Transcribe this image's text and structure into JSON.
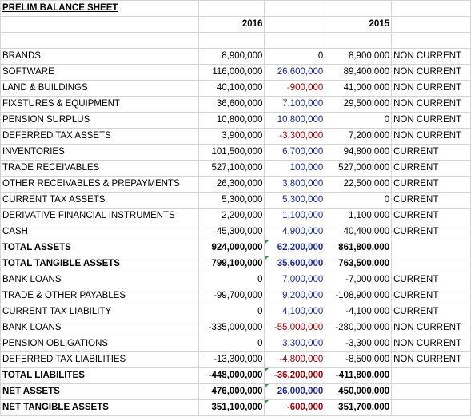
{
  "title": "PRELIM BALANCE SHEET",
  "headers": {
    "y1": "2016",
    "y2": "2015"
  },
  "colors": {
    "positive_change": "#1f2c8f",
    "negative_change": "#9c0006",
    "comment_flag": "#2e9e3a"
  },
  "rows": [
    {
      "label": "BRANDS",
      "v2016": "8,900,000",
      "change": "0",
      "change_color": "black",
      "v2015": "8,900,000",
      "class": "NON CURRENT",
      "bold": false,
      "flag": false
    },
    {
      "label": "SOFTWARE",
      "v2016": "116,000,000",
      "change": "26,600,000",
      "change_color": "blue",
      "v2015": "89,400,000",
      "class": "NON CURRENT",
      "bold": false,
      "flag": false
    },
    {
      "label": "LAND & BUILDINGS",
      "v2016": "40,100,000",
      "change": "-900,000",
      "change_color": "red",
      "v2015": "41,000,000",
      "class": "NON CURRENT",
      "bold": false,
      "flag": false
    },
    {
      "label": "FIXSTURES & EQUIPMENT",
      "v2016": "36,600,000",
      "change": "7,100,000",
      "change_color": "blue",
      "v2015": "29,500,000",
      "class": "NON CURRENT",
      "bold": false,
      "flag": false
    },
    {
      "label": "PENSION SURPLUS",
      "v2016": "10,800,000",
      "change": "10,800,000",
      "change_color": "blue",
      "v2015": "0",
      "class": "NON CURRENT",
      "bold": false,
      "flag": false
    },
    {
      "label": "DEFERRED TAX ASSETS",
      "v2016": "3,900,000",
      "change": "-3,300,000",
      "change_color": "red",
      "v2015": "7,200,000",
      "class": "NON CURRENT",
      "bold": false,
      "flag": false
    },
    {
      "label": "INVENTORIES",
      "v2016": "101,500,000",
      "change": "6,700,000",
      "change_color": "blue",
      "v2015": "94,800,000",
      "class": "CURRENT",
      "bold": false,
      "flag": false
    },
    {
      "label": "TRADE RECEIVABLES",
      "v2016": "527,100,000",
      "change": "100,000",
      "change_color": "blue",
      "v2015": "527,000,000",
      "class": "CURRENT",
      "bold": false,
      "flag": false
    },
    {
      "label": "OTHER RECEIVABLES & PREPAYMENTS",
      "v2016": "26,300,000",
      "change": "3,800,000",
      "change_color": "blue",
      "v2015": "22,500,000",
      "class": "CURRENT",
      "bold": false,
      "flag": false
    },
    {
      "label": "CURRENT TAX ASSETS",
      "v2016": "5,300,000",
      "change": "5,300,000",
      "change_color": "blue",
      "v2015": "0",
      "class": "CURRENT",
      "bold": false,
      "flag": false
    },
    {
      "label": "DERIVATIVE FINANCIAL INSTRUMENTS",
      "v2016": "2,200,000",
      "change": "1,100,000",
      "change_color": "blue",
      "v2015": "1,100,000",
      "class": "CURRENT",
      "bold": false,
      "flag": false
    },
    {
      "label": "CASH",
      "v2016": "45,300,000",
      "change": "4,900,000",
      "change_color": "blue",
      "v2015": "40,400,000",
      "class": "CURRENT",
      "bold": false,
      "flag": false
    },
    {
      "label": "TOTAL ASSETS",
      "v2016": "924,000,000",
      "change": "62,200,000",
      "change_color": "blue",
      "v2015": "861,800,000",
      "class": "",
      "bold": true,
      "flag": true
    },
    {
      "label": "TOTAL TANGIBLE ASSETS",
      "v2016": "799,100,000",
      "change": "35,600,000",
      "change_color": "blue",
      "v2015": "763,500,000",
      "class": "",
      "bold": true,
      "flag": true
    },
    {
      "label": "BANK LOANS",
      "v2016": "0",
      "change": "7,000,000",
      "change_color": "blue",
      "v2015": "-7,000,000",
      "class": "CURRENT",
      "bold": false,
      "flag": false
    },
    {
      "label": "TRADE & OTHER  PAYABLES",
      "v2016": "-99,700,000",
      "change": "9,200,000",
      "change_color": "blue",
      "v2015": "-108,900,000",
      "class": "CURRENT",
      "bold": false,
      "flag": false
    },
    {
      "label": "CURRENT TAX LIABILITY",
      "v2016": "0",
      "change": "4,100,000",
      "change_color": "blue",
      "v2015": "-4,100,000",
      "class": "CURRENT",
      "bold": false,
      "flag": false
    },
    {
      "label": "BANK LOANS",
      "v2016": "-335,000,000",
      "change": "-55,000,000",
      "change_color": "red",
      "v2015": "-280,000,000",
      "class": "NON CURRENT",
      "bold": false,
      "flag": false
    },
    {
      "label": "PENSION OBLIGATIONS",
      "v2016": "0",
      "change": "3,300,000",
      "change_color": "blue",
      "v2015": "-3,300,000",
      "class": "NON CURRENT",
      "bold": false,
      "flag": false
    },
    {
      "label": "DEFERRED TAX LIABILITIES",
      "v2016": "-13,300,000",
      "change": "-4,800,000",
      "change_color": "red",
      "v2015": "-8,500,000",
      "class": "NON CURRENT",
      "bold": false,
      "flag": false
    },
    {
      "label": "TOTAL LIABILITES",
      "v2016": "-448,000,000",
      "change": "-36,200,000",
      "change_color": "red",
      "v2015": "-411,800,000",
      "class": "",
      "bold": true,
      "flag": true
    },
    {
      "label": "NET ASSETS",
      "v2016": "476,000,000",
      "change": "26,000,000",
      "change_color": "blue",
      "v2015": "450,000,000",
      "class": "",
      "bold": true,
      "flag": true
    },
    {
      "label": "NET TANGIBLE ASSETS",
      "v2016": "351,100,000",
      "change": "-600,000",
      "change_color": "red",
      "v2015": "351,700,000",
      "class": "",
      "bold": true,
      "flag": true
    }
  ]
}
